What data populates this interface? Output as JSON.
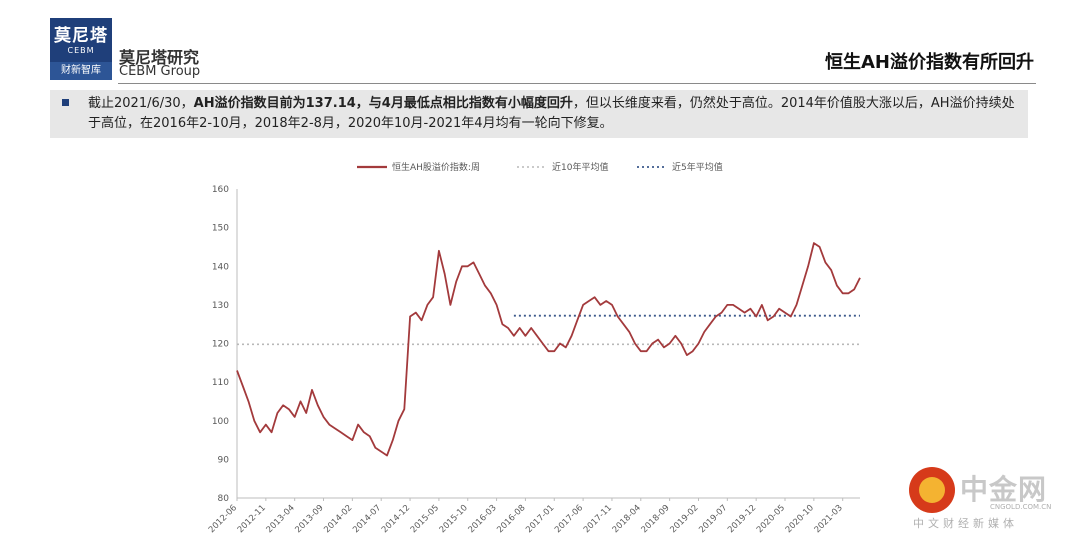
{
  "brand": {
    "logo_cn": "莫尼塔",
    "logo_en": "CEBM",
    "logo_bottom": "财新智库",
    "name_cn": "莫尼塔研究",
    "name_en": "CEBM Group"
  },
  "header": {
    "title": "恒生AH溢价指数有所回升"
  },
  "summary": {
    "part1": "截止2021/6/30，",
    "bold": "AH溢价指数目前为137.14，与4月最低点相比指数有小幅度回升",
    "part2": "，但以长维度来看，仍然处于高位。2014年价值股大涨以后，AH溢价持续处于高位，在2016年2-10月，2018年2-8月，2020年10月-2021年4月均有一轮向下修复。"
  },
  "watermark": {
    "name": "中金网",
    "url": "CNGOLD.COM.CN",
    "sub": "中文财经新媒体"
  },
  "colors": {
    "series": "#a33a3c",
    "avg10": "#b8b8b8",
    "avg5": "#3d5a8c",
    "accent": "#1f3f7a"
  },
  "chart_data": {
    "type": "line",
    "title": "",
    "xlabel": "",
    "ylabel": "",
    "ylim": [
      80,
      160
    ],
    "y_ticks": [
      "80",
      "90",
      "100",
      "110",
      "120",
      "130",
      "140",
      "150",
      "160"
    ],
    "x_ticks": [
      "2012-06",
      "2012-11",
      "2013-04",
      "2013-09",
      "2014-02",
      "2014-07",
      "2014-12",
      "2015-05",
      "2015-10",
      "2016-03",
      "2016-08",
      "2017-01",
      "2017-06",
      "2017-11",
      "2018-04",
      "2018-09",
      "2019-02",
      "2019-07",
      "2019-12",
      "2020-05",
      "2020-10",
      "2021-03"
    ],
    "legend": [
      "恒生AH股溢价指数:周",
      "近10年平均值",
      "近5年平均值"
    ],
    "legend_position": "top",
    "grid": false,
    "reference_lines": [
      {
        "name": "近10年平均值",
        "value": 119.8,
        "from": "2012-06",
        "to": "2021-06"
      },
      {
        "name": "近5年平均值",
        "value": 127.2,
        "from": "2016-06",
        "to": "2021-06"
      }
    ],
    "series": [
      {
        "name": "恒生AH股溢价指数:周",
        "x": [
          "2012-06",
          "2012-07",
          "2012-08",
          "2012-09",
          "2012-10",
          "2012-11",
          "2012-12",
          "2013-01",
          "2013-02",
          "2013-03",
          "2013-04",
          "2013-05",
          "2013-06",
          "2013-07",
          "2013-08",
          "2013-09",
          "2013-10",
          "2013-11",
          "2013-12",
          "2014-01",
          "2014-02",
          "2014-03",
          "2014-04",
          "2014-05",
          "2014-06",
          "2014-07",
          "2014-08",
          "2014-09",
          "2014-10",
          "2014-11",
          "2014-12",
          "2015-01",
          "2015-02",
          "2015-03",
          "2015-04",
          "2015-05",
          "2015-06",
          "2015-07",
          "2015-08",
          "2015-09",
          "2015-10",
          "2015-11",
          "2015-12",
          "2016-01",
          "2016-02",
          "2016-03",
          "2016-04",
          "2016-05",
          "2016-06",
          "2016-07",
          "2016-08",
          "2016-09",
          "2016-10",
          "2016-11",
          "2016-12",
          "2017-01",
          "2017-02",
          "2017-03",
          "2017-04",
          "2017-05",
          "2017-06",
          "2017-07",
          "2017-08",
          "2017-09",
          "2017-10",
          "2017-11",
          "2017-12",
          "2018-01",
          "2018-02",
          "2018-03",
          "2018-04",
          "2018-05",
          "2018-06",
          "2018-07",
          "2018-08",
          "2018-09",
          "2018-10",
          "2018-11",
          "2018-12",
          "2019-01",
          "2019-02",
          "2019-03",
          "2019-04",
          "2019-05",
          "2019-06",
          "2019-07",
          "2019-08",
          "2019-09",
          "2019-10",
          "2019-11",
          "2019-12",
          "2020-01",
          "2020-02",
          "2020-03",
          "2020-04",
          "2020-05",
          "2020-06",
          "2020-07",
          "2020-08",
          "2020-09",
          "2020-10",
          "2020-11",
          "2020-12",
          "2021-01",
          "2021-02",
          "2021-03",
          "2021-04",
          "2021-05",
          "2021-06"
        ],
        "values": [
          113,
          109,
          105,
          100,
          97,
          99,
          97,
          102,
          104,
          103,
          101,
          105,
          102,
          108,
          104,
          101,
          99,
          98,
          97,
          96,
          95,
          99,
          97,
          96,
          93,
          92,
          91,
          95,
          100,
          103,
          127,
          128,
          126,
          130,
          132,
          144,
          138,
          130,
          136,
          140,
          140,
          141,
          138,
          135,
          133,
          130,
          125,
          124,
          122,
          124,
          122,
          124,
          122,
          120,
          118,
          118,
          120,
          119,
          122,
          126,
          130,
          131,
          132,
          130,
          131,
          130,
          127,
          125,
          123,
          120,
          118,
          118,
          120,
          121,
          119,
          120,
          122,
          120,
          117,
          118,
          120,
          123,
          125,
          127,
          128,
          130,
          130,
          129,
          128,
          129,
          127,
          130,
          126,
          127,
          129,
          128,
          127,
          130,
          135,
          140,
          146,
          145,
          141,
          139,
          135,
          133,
          133,
          134,
          137
        ]
      }
    ]
  }
}
